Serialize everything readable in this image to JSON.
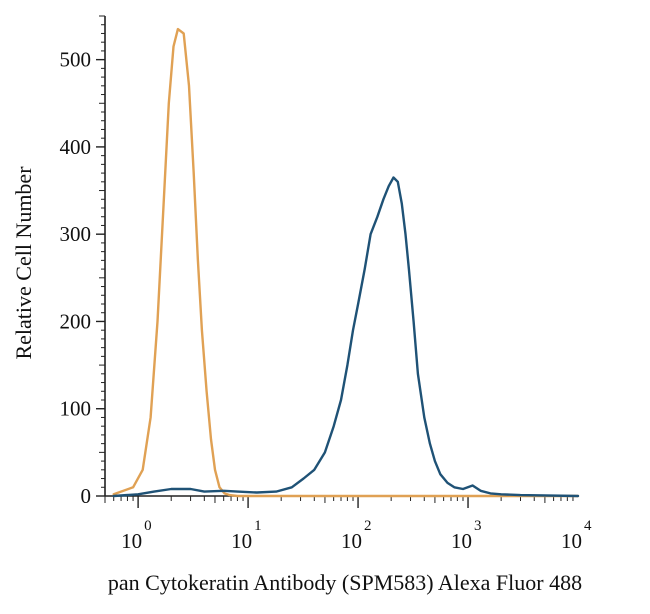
{
  "chart_data": {
    "type": "line",
    "xlabel": "pan Cytokeratin Antibody (SPM583) Alexa Fluor 488",
    "ylabel": "Relative Cell Number",
    "x_scale": "log",
    "xlim": [
      0.5,
      10000
    ],
    "ylim": [
      0,
      550
    ],
    "y_ticks": [
      0,
      100,
      200,
      300,
      400,
      500
    ],
    "x_ticks": [
      {
        "value": 1,
        "base": "10",
        "exp": "0"
      },
      {
        "value": 10,
        "base": "10",
        "exp": "1"
      },
      {
        "value": 100,
        "base": "10",
        "exp": "2"
      },
      {
        "value": 1000,
        "base": "10",
        "exp": "3"
      },
      {
        "value": 10000,
        "base": "10",
        "exp": "4"
      }
    ],
    "grid": false,
    "legend": "none",
    "series": [
      {
        "color": "#e0a154",
        "x": [
          0.6,
          0.9,
          1.1,
          1.3,
          1.5,
          1.7,
          1.9,
          2.1,
          2.3,
          2.6,
          2.9,
          3.2,
          3.5,
          3.8,
          4.2,
          4.6,
          5.0,
          5.5,
          6.1,
          6.8,
          8,
          10,
          100,
          1000,
          10000
        ],
        "y": [
          2,
          10,
          30,
          90,
          200,
          330,
          450,
          515,
          535,
          530,
          470,
          370,
          270,
          190,
          120,
          65,
          30,
          10,
          3,
          1,
          0,
          0,
          0,
          0,
          0
        ]
      },
      {
        "color": "#1f5276",
        "x": [
          0.6,
          1,
          1.4,
          2,
          3,
          4,
          6,
          8,
          12,
          18,
          25,
          32,
          40,
          50,
          60,
          70,
          80,
          90,
          100,
          115,
          130,
          150,
          170,
          190,
          210,
          230,
          250,
          270,
          290,
          320,
          350,
          400,
          450,
          500,
          560,
          650,
          750,
          900,
          1100,
          1300,
          1600,
          2000,
          3000,
          10000
        ],
        "y": [
          0,
          2,
          5,
          8,
          8,
          5,
          6,
          5,
          4,
          5,
          10,
          20,
          30,
          50,
          80,
          110,
          150,
          190,
          220,
          260,
          300,
          320,
          340,
          355,
          365,
          360,
          335,
          300,
          260,
          200,
          140,
          90,
          60,
          40,
          25,
          15,
          10,
          8,
          12,
          6,
          3,
          2,
          1,
          0
        ]
      }
    ]
  }
}
